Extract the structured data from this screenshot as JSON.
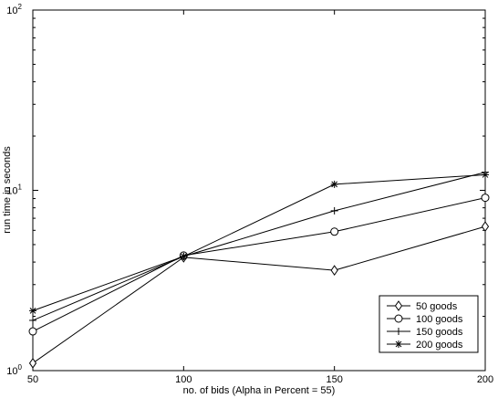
{
  "chart_data": {
    "type": "line",
    "title": "",
    "xlabel": "no. of bids (Alpha in Percent = 55)",
    "ylabel": "run time in seconds",
    "x": [
      50,
      100,
      150,
      200
    ],
    "xlim": [
      50,
      200
    ],
    "ylim": [
      1,
      100
    ],
    "yscale": "log",
    "grid": false,
    "legend_position": "bottom-right",
    "x_ticks": [
      {
        "value": 50,
        "label": "50"
      },
      {
        "value": 100,
        "label": "100"
      },
      {
        "value": 150,
        "label": "150"
      },
      {
        "value": 200,
        "label": "200"
      }
    ],
    "y_ticks": [
      {
        "value": 1,
        "base": "10",
        "exp": "0"
      },
      {
        "value": 10,
        "base": "10",
        "exp": "1"
      },
      {
        "value": 100,
        "base": "10",
        "exp": "2"
      }
    ],
    "series": [
      {
        "name": "50 goods",
        "marker": "diamond-icon",
        "values": [
          1.1,
          4.25,
          3.6,
          6.3
        ]
      },
      {
        "name": "100 goods",
        "marker": "circle-icon",
        "values": [
          1.65,
          4.35,
          5.9,
          9.1
        ]
      },
      {
        "name": "150 goods",
        "marker": "plus-icon",
        "values": [
          1.9,
          4.3,
          7.7,
          12.6
        ]
      },
      {
        "name": "200 goods",
        "marker": "asterisk-icon",
        "values": [
          2.15,
          4.3,
          10.8,
          12.2
        ]
      }
    ],
    "colors": {
      "line": "#000000",
      "axes": "#000000",
      "background": "#ffffff"
    }
  }
}
